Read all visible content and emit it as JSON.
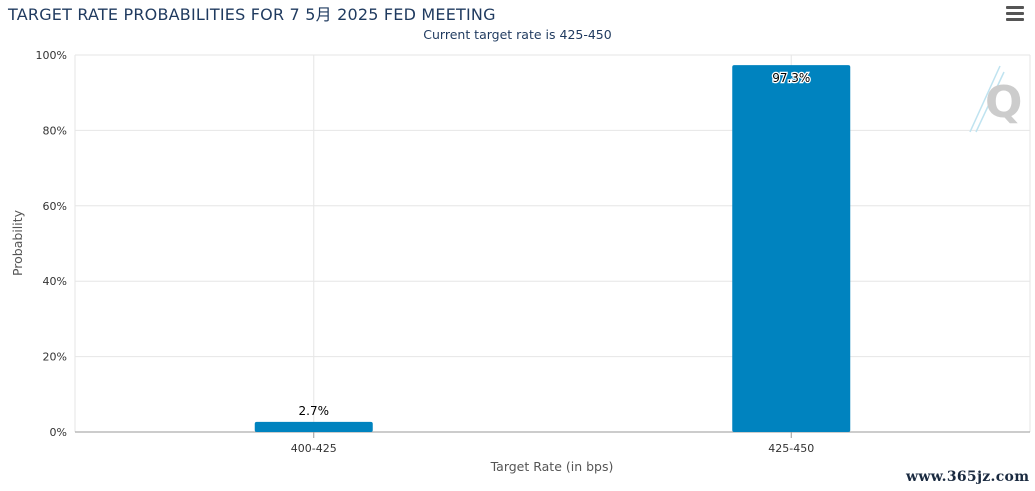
{
  "title": "TARGET RATE PROBABILITIES FOR 7 5月 2025 FED MEETING",
  "subtitle": "Current target rate is 425-450",
  "menu": {
    "icon": "hamburger-menu-icon"
  },
  "watermark": "www.365jz.com",
  "colors": {
    "bar": "#0083bf",
    "grid": "#e6e6e6",
    "title": "#1f3a5f"
  },
  "chart_data": {
    "type": "bar",
    "title": "TARGET RATE PROBABILITIES FOR 7 5月 2025 FED MEETING",
    "subtitle": "Current target rate is 425-450",
    "categories": [
      "400-425",
      "425-450"
    ],
    "values": [
      2.7,
      97.3
    ],
    "data_labels": [
      "2.7%",
      "97.3%"
    ],
    "xlabel": "Target Rate (in bps)",
    "ylabel": "Probability",
    "ylim": [
      0,
      100
    ],
    "yticks": [
      "0%",
      "20%",
      "40%",
      "60%",
      "80%",
      "100%"
    ],
    "grid": true,
    "legend": "none"
  }
}
